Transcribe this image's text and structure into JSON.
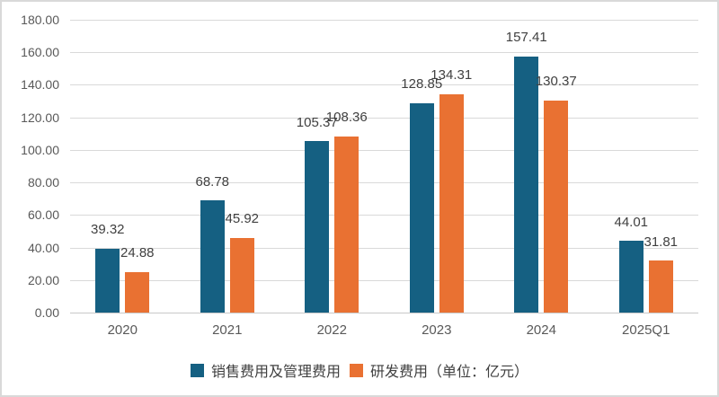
{
  "chart_data": {
    "type": "bar",
    "title": "",
    "xlabel": "",
    "ylabel": "",
    "categories": [
      "2020",
      "2021",
      "2022",
      "2023",
      "2024",
      "2025Q1"
    ],
    "series": [
      {
        "name": "销售费用及管理费用",
        "color": "#156082",
        "values": [
          39.32,
          68.78,
          105.37,
          128.85,
          157.41,
          44.01
        ],
        "labels": [
          "39.32",
          "68.78",
          "105.37",
          "128.85",
          "157.41",
          "44.01"
        ]
      },
      {
        "name": "研发费用（单位：亿元）",
        "color": "#E97132",
        "values": [
          24.88,
          45.92,
          108.36,
          134.31,
          130.37,
          31.81
        ],
        "labels": [
          "24.88",
          "45.92",
          "108.36",
          "134.31",
          "130.37",
          "31.81"
        ]
      }
    ],
    "ylim": [
      0,
      180
    ],
    "ytick_step": 20,
    "ytick_labels": [
      "180.00",
      "160.00",
      "140.00",
      "120.00",
      "100.00",
      "80.00",
      "60.00",
      "40.00",
      "20.00",
      "0.00"
    ],
    "grid": true,
    "legend_position": "bottom"
  },
  "colors": {
    "series1": "#156082",
    "series2": "#E97132",
    "gridline": "#d9d9d9",
    "axis_text": "#595959",
    "label_text": "#404040",
    "frame_border": "#d9d9d9",
    "background": "#ffffff"
  }
}
